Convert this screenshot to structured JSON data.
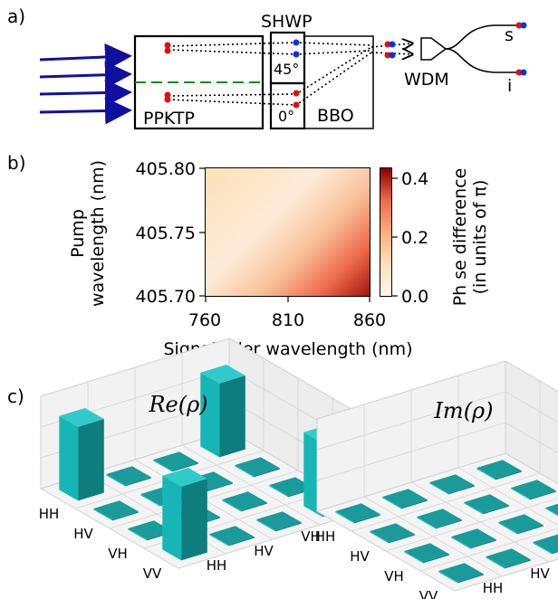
{
  "panels": {
    "a": "a)",
    "b": "b)",
    "c": "c)"
  },
  "setup": {
    "shwp": "SHWP",
    "angle_top": "45°",
    "angle_bottom": "0°",
    "ppktp": "PPKTP",
    "bbo": "BBO",
    "wdm": "WDM",
    "signal": "s",
    "idler": "i"
  },
  "heatmap": {
    "ylabel_line1": "Pump",
    "ylabel_line2": "wavelength (nm)",
    "xlabel": "Signal/idler wavelength (nm)",
    "yticks": [
      "405.80",
      "405.75",
      "405.70"
    ],
    "xticks": [
      "760",
      "810",
      "860"
    ],
    "cbar_label_line1": "Ph  se difference",
    "cbar_label_line2": "(in units of π)",
    "cbar_ticks": [
      "0.4",
      "0.2",
      "0.0"
    ]
  },
  "chart_data": [
    {
      "type": "heatmap",
      "xlabel": "Signal/idler wavelength (nm)",
      "ylabel": "Pump wavelength (nm)",
      "xlim": [
        760,
        860
      ],
      "ylim": [
        405.7,
        405.8
      ],
      "colorbar": {
        "label": "Ph  se difference (in units of π)",
        "range": [
          0.0,
          0.44
        ],
        "ticks": [
          0.0,
          0.2,
          0.4
        ]
      }
    },
    {
      "type": "bar",
      "title": "Re(ρ)",
      "rows": [
        "HH",
        "HV",
        "VH",
        "VV"
      ],
      "cols": [
        "HH",
        "HV",
        "VH",
        "VV"
      ],
      "values": [
        [
          0.48,
          0.0,
          0.0,
          0.48
        ],
        [
          0.0,
          0.0,
          0.0,
          0.0
        ],
        [
          0.0,
          0.0,
          0.0,
          0.0
        ],
        [
          0.48,
          0.0,
          0.0,
          0.48
        ]
      ],
      "zticks": [
        "0",
        "0.2",
        "0.4",
        "0.6"
      ],
      "zlim": [
        0,
        0.6
      ]
    },
    {
      "type": "bar",
      "title": "Im(ρ)",
      "rows": [
        "HH",
        "HV",
        "VH",
        "VV"
      ],
      "cols": [
        "HH",
        "HV",
        "VH",
        "VV"
      ],
      "values": [
        [
          0.0,
          0.0,
          0.0,
          0.0
        ],
        [
          0.0,
          0.0,
          0.0,
          0.0
        ],
        [
          0.0,
          0.0,
          0.0,
          0.0
        ],
        [
          0.0,
          0.0,
          0.0,
          0.0
        ]
      ],
      "zticks": [
        "0",
        "0.2",
        "0.4",
        "0.6"
      ],
      "zlim": [
        0,
        0.6
      ]
    }
  ],
  "colors": {
    "arrow": "#1010a0",
    "dashed": "#1a8a1a",
    "red_dot": "#e01010",
    "blue_dot": "#1030e0",
    "bar_front": "#16b6b6",
    "bar_side": "#0e7d7d",
    "bar_top": "#31caca"
  }
}
